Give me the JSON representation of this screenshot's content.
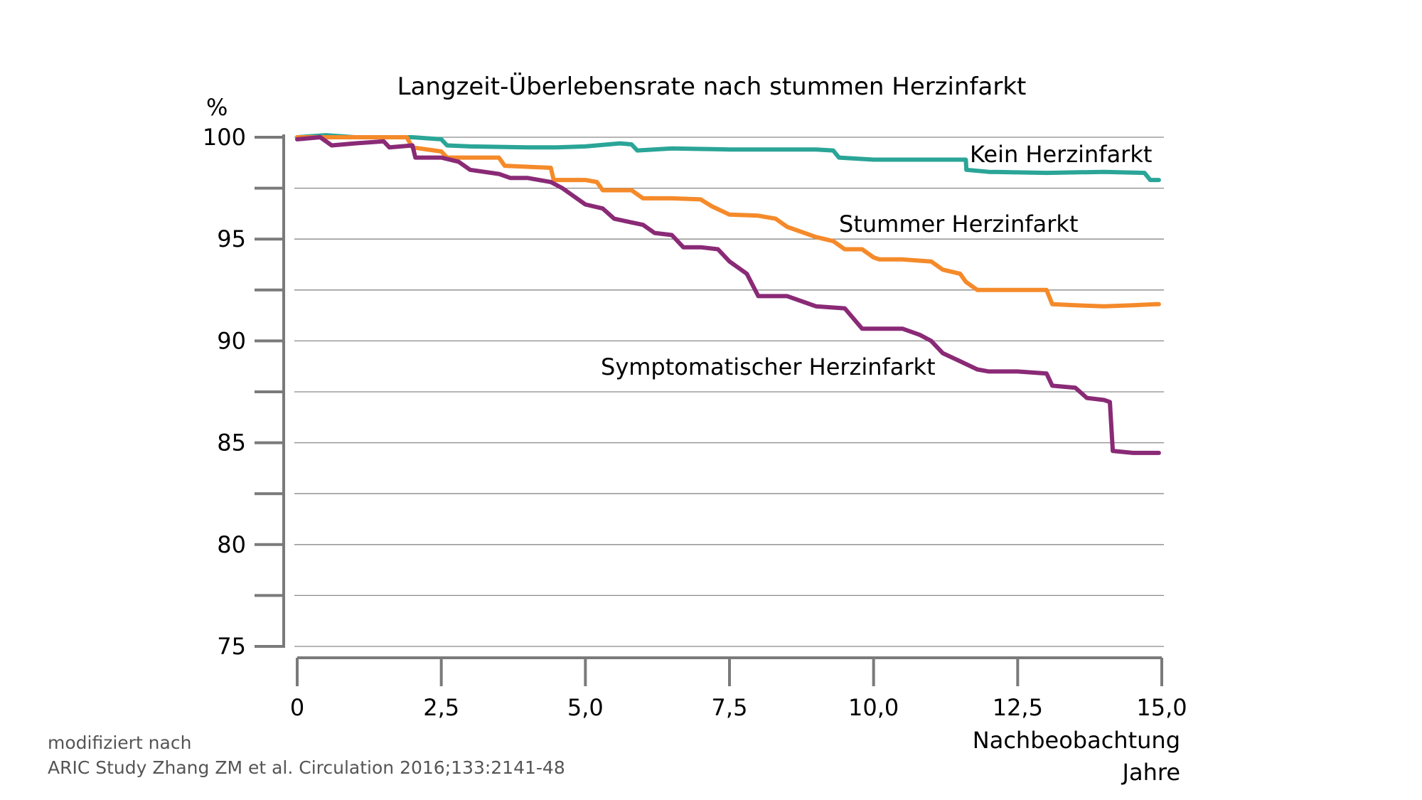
{
  "chart_data": {
    "type": "line",
    "title": "Langzeit-Überlebensrate nach stummen Herzinfarkt",
    "ylabel": "%",
    "xlabel_line1": "Nachbeobachtung",
    "xlabel_line2": "Jahre",
    "ylim": [
      75,
      100
    ],
    "xlim": [
      0,
      15
    ],
    "y_ticks": [
      75,
      77.5,
      80,
      82.5,
      85,
      87.5,
      90,
      92.5,
      95,
      97.5,
      100
    ],
    "y_tick_labels": [
      {
        "value": 75,
        "label": "75"
      },
      {
        "value": 80,
        "label": "80"
      },
      {
        "value": 85,
        "label": "85"
      },
      {
        "value": 90,
        "label": "90"
      },
      {
        "value": 95,
        "label": "95"
      },
      {
        "value": 100,
        "label": "100"
      }
    ],
    "x_ticks": [
      {
        "value": 0,
        "label": "0"
      },
      {
        "value": 2.5,
        "label": "2,5"
      },
      {
        "value": 5,
        "label": "5,0"
      },
      {
        "value": 7.5,
        "label": "7,5"
      },
      {
        "value": 10,
        "label": "10,0"
      },
      {
        "value": 12.5,
        "label": "12,5"
      },
      {
        "value": 15,
        "label": "15,0"
      }
    ],
    "grid": "horizontal",
    "series": [
      {
        "name": "Kein Herzinfarkt",
        "color": "#2aa597",
        "x": [
          0,
          0.5,
          1.0,
          1.5,
          2.0,
          2.5,
          2.6,
          3.0,
          4.0,
          4.5,
          5.0,
          5.6,
          5.8,
          5.9,
          6.5,
          7.5,
          8.5,
          9.0,
          9.3,
          9.4,
          10.0,
          11.0,
          11.6,
          11.61,
          12.0,
          13.0,
          14.0,
          14.7,
          14.8,
          14.95
        ],
        "y": [
          100,
          100.1,
          100,
          100,
          100,
          99.9,
          99.6,
          99.55,
          99.5,
          99.5,
          99.55,
          99.7,
          99.65,
          99.35,
          99.45,
          99.4,
          99.4,
          99.4,
          99.35,
          99.0,
          98.9,
          98.9,
          98.9,
          98.4,
          98.3,
          98.25,
          98.3,
          98.25,
          97.9,
          97.9
        ]
      },
      {
        "name": "Stummer Herzinfarkt",
        "color": "#f58a2a",
        "x": [
          0,
          1.0,
          1.9,
          2.0,
          2.5,
          2.6,
          3.5,
          3.6,
          4.4,
          4.45,
          5.0,
          5.2,
          5.3,
          5.8,
          6.0,
          6.5,
          7.0,
          7.2,
          7.5,
          8.0,
          8.3,
          8.5,
          8.8,
          9.0,
          9.3,
          9.5,
          9.8,
          10.0,
          10.1,
          10.5,
          11.0,
          11.2,
          11.5,
          11.6,
          11.8,
          12.5,
          13.0,
          13.1,
          13.5,
          14.0,
          14.5,
          14.9,
          14.95
        ],
        "y": [
          100,
          100,
          100,
          99.5,
          99.3,
          99.0,
          99.0,
          98.6,
          98.5,
          97.9,
          97.9,
          97.8,
          97.4,
          97.4,
          97.0,
          97.0,
          96.95,
          96.6,
          96.2,
          96.15,
          96.0,
          95.6,
          95.3,
          95.1,
          94.9,
          94.5,
          94.5,
          94.1,
          94.0,
          94.0,
          93.9,
          93.5,
          93.3,
          92.9,
          92.5,
          92.5,
          92.5,
          91.8,
          91.75,
          91.7,
          91.75,
          91.8,
          91.8
        ]
      },
      {
        "name": "Symptomatischer Herzinfarkt",
        "color": "#8a2a76",
        "x": [
          0,
          0.4,
          0.6,
          1.0,
          1.5,
          1.6,
          2.0,
          2.05,
          2.5,
          2.8,
          3.0,
          3.5,
          3.7,
          4.0,
          4.4,
          4.6,
          4.8,
          5.0,
          5.3,
          5.5,
          6.0,
          6.2,
          6.5,
          6.7,
          7.0,
          7.3,
          7.5,
          7.8,
          8.0,
          8.5,
          8.8,
          9.0,
          9.5,
          9.8,
          10.0,
          10.5,
          10.8,
          11.0,
          11.2,
          11.5,
          11.8,
          12.0,
          12.5,
          13.0,
          13.1,
          13.5,
          13.7,
          14.0,
          14.1,
          14.15,
          14.5,
          14.95
        ],
        "y": [
          99.9,
          100.0,
          99.6,
          99.7,
          99.8,
          99.5,
          99.6,
          99.0,
          99.0,
          98.8,
          98.4,
          98.2,
          98.0,
          98.0,
          97.8,
          97.5,
          97.1,
          96.7,
          96.5,
          96.0,
          95.7,
          95.3,
          95.2,
          94.6,
          94.6,
          94.5,
          93.9,
          93.3,
          92.2,
          92.2,
          91.9,
          91.7,
          91.6,
          90.6,
          90.6,
          90.6,
          90.3,
          90.0,
          89.4,
          89.0,
          88.6,
          88.5,
          88.5,
          88.4,
          87.8,
          87.7,
          87.2,
          87.1,
          87.0,
          84.6,
          84.5,
          84.5
        ]
      }
    ],
    "source_line1": "modifiziert nach",
    "source_line2": "ARIC Study  Zhang ZM et al. Circulation 2016;133:2141-48"
  }
}
